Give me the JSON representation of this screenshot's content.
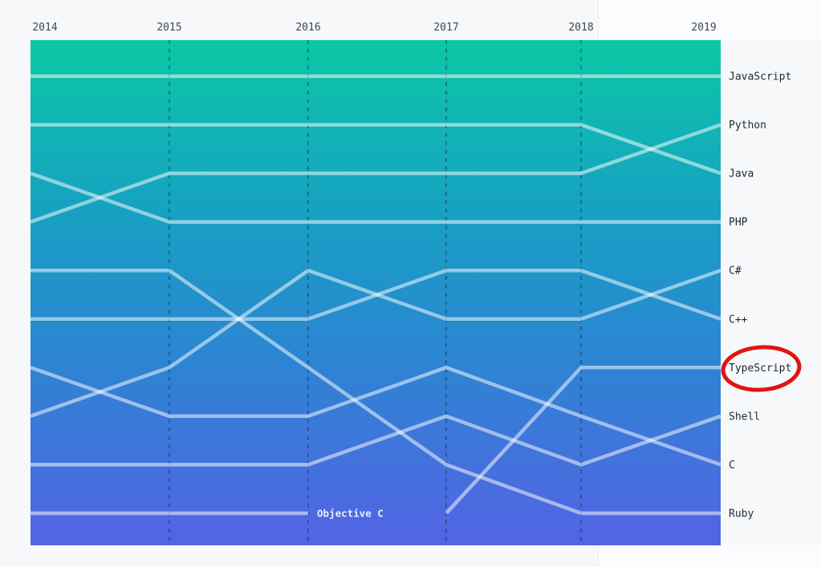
{
  "page": {
    "background": "#f6f8fa",
    "corner_background": "#fbfcfe"
  },
  "chart_data": {
    "type": "line",
    "subtype": "bump-rank-chart",
    "title": "",
    "x": [
      "2014",
      "2015",
      "2016",
      "2017",
      "2018",
      "2019"
    ],
    "rank_axis": {
      "min": 1,
      "max": 10,
      "inverted": true,
      "tick_labels_hidden": true
    },
    "grid": "vertical-dashed-at-inner-years",
    "legend_position": "right",
    "series": [
      {
        "name": "JavaScript",
        "ranks": [
          1,
          1,
          1,
          1,
          1,
          1
        ],
        "label": "right"
      },
      {
        "name": "Python",
        "ranks": [
          4,
          3,
          3,
          3,
          3,
          2
        ],
        "label": "right"
      },
      {
        "name": "Java",
        "ranks": [
          2,
          2,
          2,
          2,
          2,
          3
        ],
        "label": "right"
      },
      {
        "name": "PHP",
        "ranks": [
          3,
          4,
          4,
          4,
          4,
          4
        ],
        "label": "right"
      },
      {
        "name": "C#",
        "ranks": [
          8,
          7,
          5,
          6,
          6,
          5
        ],
        "label": "right"
      },
      {
        "name": "C++",
        "ranks": [
          6,
          6,
          6,
          5,
          5,
          6
        ],
        "label": "right"
      },
      {
        "name": "TypeScript",
        "ranks": [
          null,
          null,
          null,
          10,
          7,
          7
        ],
        "label": "right"
      },
      {
        "name": "Shell",
        "ranks": [
          9,
          9,
          9,
          8,
          9,
          8
        ],
        "label": "right"
      },
      {
        "name": "C",
        "ranks": [
          7,
          8,
          8,
          7,
          8,
          9
        ],
        "label": "right"
      },
      {
        "name": "Ruby",
        "ranks": [
          5,
          5,
          7,
          9,
          10,
          10
        ],
        "label": "right"
      },
      {
        "name": "Objective C",
        "ranks": [
          10,
          10,
          10,
          null,
          null,
          null
        ],
        "label": "inline"
      }
    ],
    "annotation": {
      "shape": "hand-drawn-ellipse",
      "around_label": "TypeScript",
      "color": "#e01513"
    },
    "colors": {
      "gradient_top": "#0bc8a5",
      "gradient_upper_mid": "#17a0c3",
      "gradient_lower_mid": "#2b86d2",
      "gradient_bottom": "#5463e4",
      "line": "rgba(255,255,255,0.52)",
      "gridline": "rgba(16,45,90,0.42)",
      "year_label": "#3f474e",
      "language_label": "#1d2935",
      "inline_label": "#e6f1fd"
    }
  }
}
